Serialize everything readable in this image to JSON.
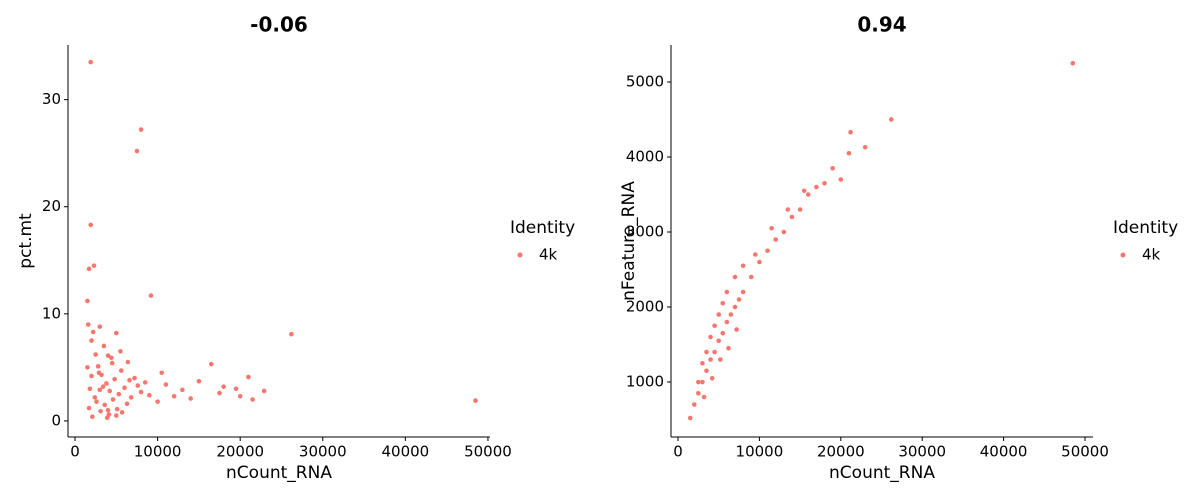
{
  "chart_data": [
    {
      "type": "scatter",
      "title": "-0.06",
      "x_label": "nCount_RNA",
      "y_label": "pct.mt",
      "legend_title": "Identity",
      "xlim": [
        -850,
        50250
      ],
      "ylim": [
        -1.5,
        35.1
      ],
      "xticks": [
        0,
        10000,
        20000,
        30000,
        40000,
        50000
      ],
      "yticks": [
        0,
        10,
        20,
        30
      ],
      "x": [
        1600,
        2000,
        2200,
        2500,
        2800,
        3000,
        3200,
        3500,
        3800,
        4000,
        4200,
        4500,
        4800,
        5000,
        5300,
        5600,
        6000,
        6400,
        6800,
        7200,
        7600,
        8000,
        8500,
        9000,
        1700,
        2100,
        2600,
        3100,
        3600,
        4100,
        4600,
        5100,
        5700,
        6300,
        1800,
        2400,
        2900,
        3400,
        3900,
        4400,
        5500,
        6600,
        1500,
        2000,
        3000,
        4000,
        5000,
        1900,
        8000,
        7500,
        1900,
        1700,
        2300,
        9200,
        1500,
        26200,
        48500,
        22900,
        21000,
        16500,
        20000,
        18000,
        15000,
        13000,
        11000,
        12000,
        10500,
        10000,
        14000,
        17500,
        19500,
        21500
      ],
      "series": [
        {
          "name": "4k",
          "color": "#F8766D",
          "values": [
            9.0,
            7.5,
            8.3,
            6.2,
            5.1,
            8.8,
            4.3,
            7.0,
            3.5,
            6.1,
            2.8,
            5.4,
            3.9,
            8.2,
            2.5,
            4.7,
            3.1,
            5.5,
            2.2,
            4.0,
            3.3,
            2.7,
            3.6,
            2.4,
            1.2,
            0.4,
            1.8,
            0.9,
            1.5,
            0.6,
            2.0,
            1.1,
            0.8,
            1.6,
            3.0,
            2.2,
            4.5,
            3.2,
            0.3,
            5.9,
            6.5,
            3.8,
            5.0,
            4.2,
            2.9,
            1.0,
            0.5,
            33.5,
            27.2,
            25.2,
            18.3,
            14.2,
            14.5,
            11.7,
            11.2,
            8.1,
            1.9,
            2.8,
            4.1,
            5.3,
            2.3,
            3.2,
            3.7,
            2.9,
            3.4,
            2.3,
            4.5,
            1.8,
            2.1,
            2.6,
            3.0,
            2.0
          ]
        }
      ]
    },
    {
      "type": "scatter",
      "title": "0.94",
      "x_label": "nCount_RNA",
      "y_label": "nFeature_RNA",
      "legend_title": "Identity",
      "xlim": [
        -860,
        50980
      ],
      "ylim": [
        267,
        5493
      ],
      "xticks": [
        0,
        10000,
        20000,
        30000,
        40000,
        50000
      ],
      "yticks": [
        1000,
        2000,
        3000,
        4000,
        5000
      ],
      "x": [
        1500,
        2000,
        2500,
        3000,
        3500,
        4000,
        4500,
        5000,
        5500,
        6000,
        6500,
        7000,
        7500,
        8000,
        9000,
        10000,
        11000,
        12000,
        13000,
        14000,
        15000,
        16000,
        17000,
        18000,
        19000,
        20000,
        21000,
        21200,
        23000,
        26200,
        48500,
        2500,
        3000,
        3500,
        4000,
        4500,
        5000,
        5500,
        6000,
        7000,
        8000,
        9500,
        11500,
        13500,
        15500,
        3200,
        4200,
        5200,
        6200,
        7200
      ],
      "series": [
        {
          "name": "4k",
          "color": "#F8766D",
          "values": [
            520,
            700,
            850,
            1000,
            1150,
            1300,
            1400,
            1550,
            1650,
            1800,
            1900,
            2000,
            2100,
            2200,
            2400,
            2600,
            2750,
            2900,
            3000,
            3200,
            3300,
            3500,
            3600,
            3650,
            3850,
            3700,
            4050,
            4330,
            4130,
            4500,
            5250,
            1000,
            1250,
            1400,
            1600,
            1750,
            1900,
            2050,
            2200,
            2400,
            2550,
            2700,
            3050,
            3300,
            3550,
            800,
            1050,
            1300,
            1450,
            1700
          ]
        }
      ]
    }
  ]
}
